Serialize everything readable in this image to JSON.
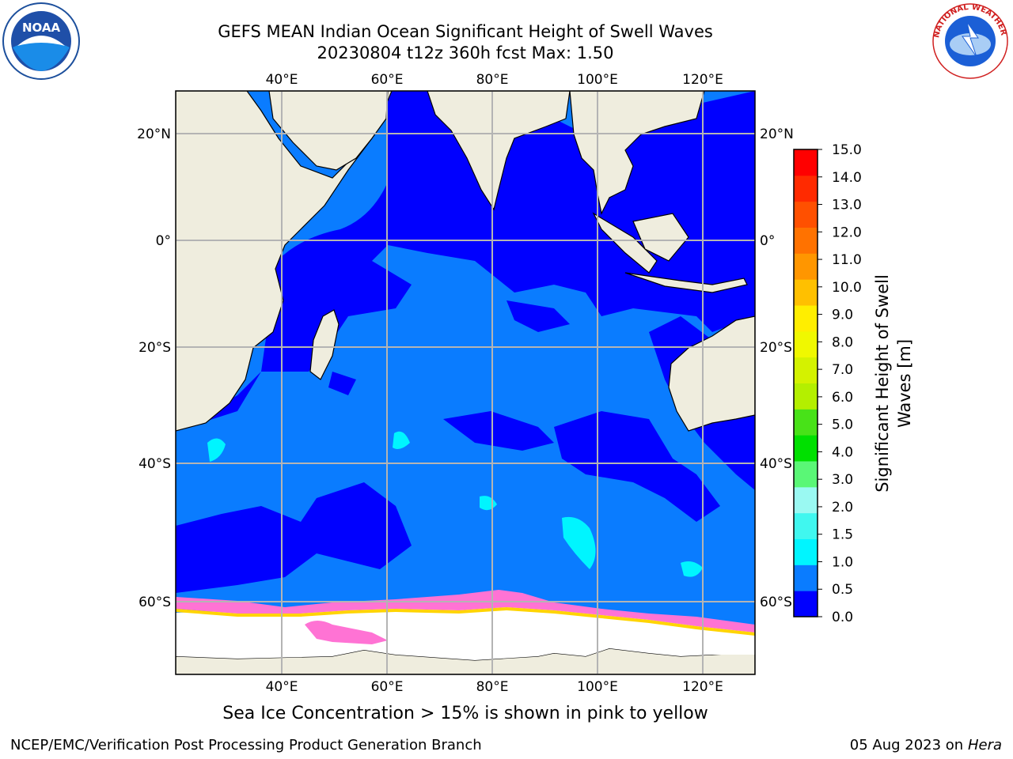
{
  "header": {
    "title_line1": "GEFS MEAN Indian Ocean Significant Height of Swell Waves",
    "title_line2": "20230804 t12z 360h fcst   Max: 1.50"
  },
  "logos": {
    "left": {
      "text": "NOAA",
      "icon": "noaa-logo"
    },
    "right": {
      "text": "NATIONAL WEATHER SERVICE",
      "icon": "nws-logo"
    }
  },
  "map": {
    "lon_ticks": [
      "40°E",
      "60°E",
      "80°E",
      "100°E",
      "120°E"
    ],
    "lat_ticks": [
      "20°N",
      "0°",
      "20°S",
      "40°S",
      "60°S"
    ],
    "ocean_color": "#0a7cff",
    "land_color": "#efedde",
    "ice_color": "#ffffff",
    "low_swell_color": "#0000ff"
  },
  "colorbar": {
    "label_line1": "Significant Height of Swell",
    "label_line2": "Waves [m]",
    "ticks": [
      "0.0",
      "0.5",
      "1.0",
      "1.5",
      "2.0",
      "3.0",
      "4.0",
      "5.0",
      "6.0",
      "7.0",
      "8.0",
      "9.0",
      "10.0",
      "11.0",
      "12.0",
      "13.0",
      "14.0",
      "15.0"
    ],
    "colors": [
      "#0000ff",
      "#0a7cff",
      "#00f5ff",
      "#40f7ef",
      "#9af9f2",
      "#5af776",
      "#00e000",
      "#48e218",
      "#b4ef00",
      "#d4f200",
      "#f0f800",
      "#ffee00",
      "#ffc000",
      "#ff9600",
      "#ff7200",
      "#ff5000",
      "#ff2a00",
      "#ff0000"
    ]
  },
  "caption": "Sea Ice Concentration > 15% is shown in pink to yellow",
  "footer": {
    "left": "NCEP/EMC/Verification Post Processing Product Generation Branch",
    "right_date": "05 Aug 2023 on",
    "right_host": "Hera"
  }
}
